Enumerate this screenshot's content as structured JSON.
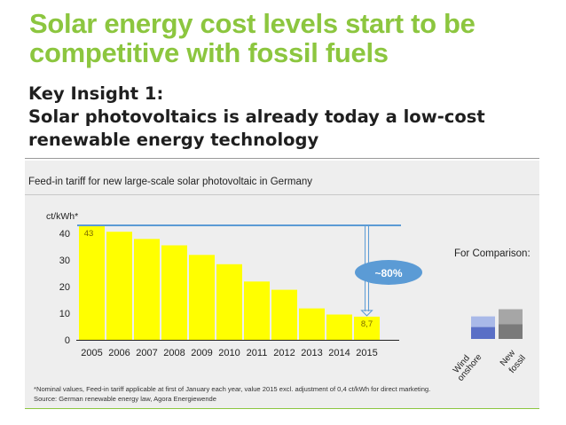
{
  "title": "Solar energy cost levels start to be competitive with fossil fuels",
  "insight": {
    "heading": "Key Insight 1:",
    "line1": "Solar photovoltaics is already today a low-cost",
    "line2": "renewable energy technology"
  },
  "panel_title": "Feed-in tariff for new large-scale solar photovoltaic in Germany",
  "footnote": {
    "line1": "*Nominal values, Feed-in tariff applicable at first of January each year, value 2015 excl. adjustment of 0,4 ct/kWh for direct marketing.",
    "line2": "Source: German renewable energy law, Agora Energiewende"
  },
  "colors": {
    "title_green": "#8cc63f",
    "bar_yellow": "#ffff00",
    "reference_line": "#5b9bd5",
    "callout": "#5b9bd5"
  },
  "chart_data": {
    "type": "bar",
    "ylabel": "ct/kWh*",
    "ylim": [
      0,
      45
    ],
    "yticks": [
      0,
      10,
      20,
      30,
      40
    ],
    "grid": false,
    "categories": [
      "2005",
      "2006",
      "2007",
      "2008",
      "2009",
      "2010",
      "2011",
      "2012",
      "2013",
      "2014",
      "2015"
    ],
    "values": [
      43,
      40.6,
      37.9,
      35.5,
      31.9,
      28.4,
      21.9,
      18.8,
      11.8,
      9.5,
      8.7
    ],
    "data_labels": {
      "first": "43",
      "last": "8,7"
    },
    "reference_line_value": 43,
    "callout_text": "~80%",
    "comparison": {
      "title": "For Comparison:",
      "items": [
        {
          "label_line1": "Wind",
          "label_line2": "onshore",
          "low": 4.8,
          "high": 8.8,
          "range_color": "#a9b9e8",
          "base_color": "#5a6fc6"
        },
        {
          "label_line1": "New",
          "label_line2": "fossil",
          "low": 5.9,
          "high": 11.5,
          "range_color": "#a6a6a6",
          "base_color": "#7a7a7a"
        }
      ]
    }
  }
}
